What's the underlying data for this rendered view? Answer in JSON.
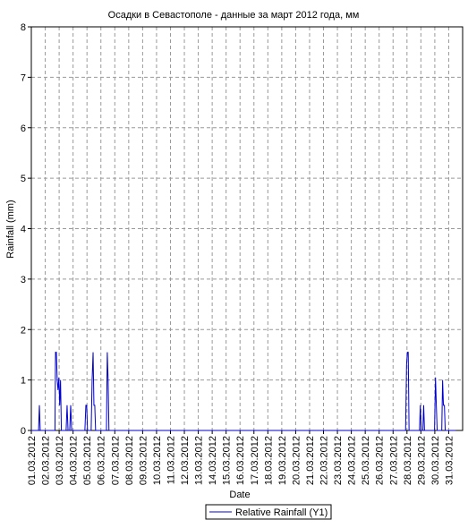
{
  "chart_data": {
    "type": "line",
    "title": "Осадки в Севастополе - данные за март 2012 года, мм",
    "x_label": "Date",
    "y_label": "Rainfall (mm)",
    "x": [
      1,
      1.52,
      1.58,
      1.64,
      2.7,
      2.74,
      2.8,
      2.86,
      2.92,
      2.98,
      3.04,
      3.1,
      3.16,
      3.5,
      3.57,
      3.64,
      3.76,
      3.83,
      3.9,
      4.85,
      4.92,
      4.98,
      5.04,
      5.3,
      5.37,
      5.44,
      5.5,
      5.56,
      5.62,
      6.4,
      6.46,
      6.52,
      6.58,
      27.9,
      27.97,
      28.03,
      28.09,
      28.15,
      28.9,
      28.96,
      29.02,
      29.14,
      29.2,
      29.26,
      29.98,
      30.05,
      30.11,
      30.17,
      30.5,
      30.56,
      30.62,
      30.69,
      30.75,
      31.5
    ],
    "series": [
      {
        "name": "Relative Rainfall (Y1)",
        "color": "#0000cc",
        "values": [
          0,
          0,
          0.5,
          0,
          0,
          1.55,
          1.55,
          1.0,
          0.8,
          1.05,
          0.5,
          1.0,
          0,
          0,
          0.5,
          0,
          0,
          0.5,
          0,
          0,
          0.5,
          0.5,
          0,
          0,
          1.0,
          1.55,
          0.5,
          0.5,
          0,
          0,
          1.55,
          1.0,
          0,
          0,
          1.3,
          1.55,
          1.55,
          0,
          0,
          0.5,
          0,
          0,
          0.5,
          0,
          0,
          1.05,
          0.5,
          0,
          0,
          1.0,
          0.5,
          0.5,
          0,
          0
        ]
      }
    ],
    "xlim": [
      1,
      32
    ],
    "xticks": [
      {
        "value": 1,
        "label": "01.03.2012"
      },
      {
        "value": 2,
        "label": "02.03.2012"
      },
      {
        "value": 3,
        "label": "03.03.2012"
      },
      {
        "value": 4,
        "label": "04.03.2012"
      },
      {
        "value": 5,
        "label": "05.03.2012"
      },
      {
        "value": 6,
        "label": "06.03.2012"
      },
      {
        "value": 7,
        "label": "07.03.2012"
      },
      {
        "value": 8,
        "label": "08.03.2012"
      },
      {
        "value": 9,
        "label": "09.03.2012"
      },
      {
        "value": 10,
        "label": "10.03.2012"
      },
      {
        "value": 11,
        "label": "11.03.2012"
      },
      {
        "value": 12,
        "label": "12.03.2012"
      },
      {
        "value": 13,
        "label": "13.03.2012"
      },
      {
        "value": 14,
        "label": "14.03.2012"
      },
      {
        "value": 15,
        "label": "15.03.2012"
      },
      {
        "value": 16,
        "label": "16.03.2012"
      },
      {
        "value": 17,
        "label": "17.03.2012"
      },
      {
        "value": 18,
        "label": "18.03.2012"
      },
      {
        "value": 19,
        "label": "19.03.2012"
      },
      {
        "value": 20,
        "label": "20.03.2012"
      },
      {
        "value": 21,
        "label": "21.03.2012"
      },
      {
        "value": 22,
        "label": "22.03.2012"
      },
      {
        "value": 23,
        "label": "23.03.2012"
      },
      {
        "value": 24,
        "label": "24.03.2012"
      },
      {
        "value": 25,
        "label": "25.03.2012"
      },
      {
        "value": 26,
        "label": "26.03.2012"
      },
      {
        "value": 27,
        "label": "27.03.2012"
      },
      {
        "value": 28,
        "label": "28.03.2012"
      },
      {
        "value": 29,
        "label": "29.03.2012"
      },
      {
        "value": 30,
        "label": "30.03.2012"
      },
      {
        "value": 31,
        "label": "31.03.2012"
      }
    ],
    "ylim": [
      0,
      8
    ],
    "yticks": [
      0,
      1,
      2,
      3,
      4,
      5,
      6,
      7,
      8
    ],
    "grid": true
  }
}
